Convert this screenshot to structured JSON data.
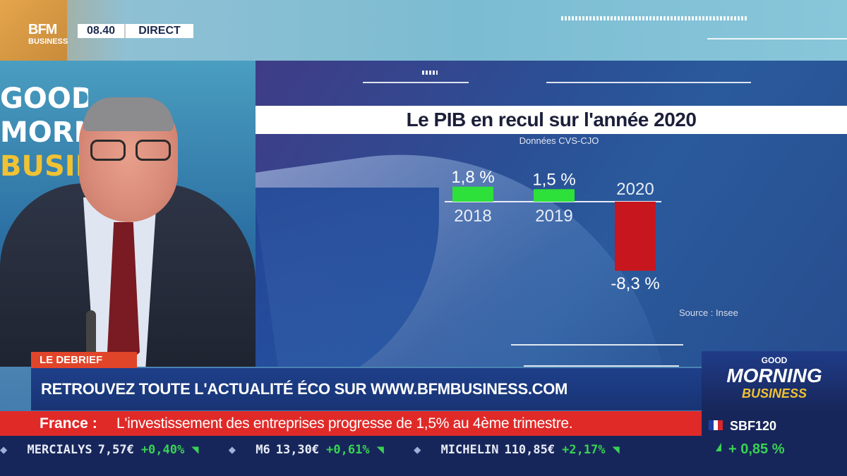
{
  "broadcast": {
    "channel_logo_line1": "BFM",
    "channel_logo_line2": "BUSINESS",
    "time": "08.40",
    "live_label": "DIRECT"
  },
  "studio": {
    "screen_lines": [
      "GOOD",
      "MORNING",
      "BUSINESS"
    ]
  },
  "chart": {
    "title": "Le PIB en recul sur l'année 2020",
    "subtitle": "Données CVS-CJO",
    "source": "Source : Insee",
    "positive_color": "#2ee03a",
    "negative_color": "#c8161e"
  },
  "chart_data": {
    "type": "bar",
    "categories": [
      "2018",
      "2019",
      "2020"
    ],
    "values": [
      1.8,
      1.5,
      -8.3
    ],
    "value_labels": [
      "1,8 %",
      "1,5 %",
      "-8,3 %"
    ],
    "title": "Le PIB en recul sur l'année 2020",
    "subtitle": "Données CVS-CJO",
    "source": "Source : Insee",
    "xlabel": "",
    "ylabel": ""
  },
  "lower_third": {
    "tag": "LE DEBRIEF",
    "headline": "RETROUVEZ TOUTE L'ACTUALITÉ ÉCO SUR WWW.BFMBUSINESS.COM"
  },
  "news_bar": {
    "category": "France :",
    "message": "L'investissement des entreprises progresse de 1,5% au 4ème trimestre."
  },
  "ticker": [
    {
      "name": "MERCIALYS",
      "price": "7,57€",
      "change": "+0,40%"
    },
    {
      "name": "M6",
      "price": "13,30€",
      "change": "+0,61%"
    },
    {
      "name": "MICHELIN",
      "price": "110,85€",
      "change": "+2,17%"
    }
  ],
  "show_box": {
    "line1": "GOOD",
    "line2": "MORNING",
    "line3": "BUSINESS",
    "index_name": "SBF120",
    "index_change": "+ 0,85 %",
    "flag_colors": [
      "#1f3fa0",
      "#ffffff",
      "#d8262b"
    ]
  }
}
